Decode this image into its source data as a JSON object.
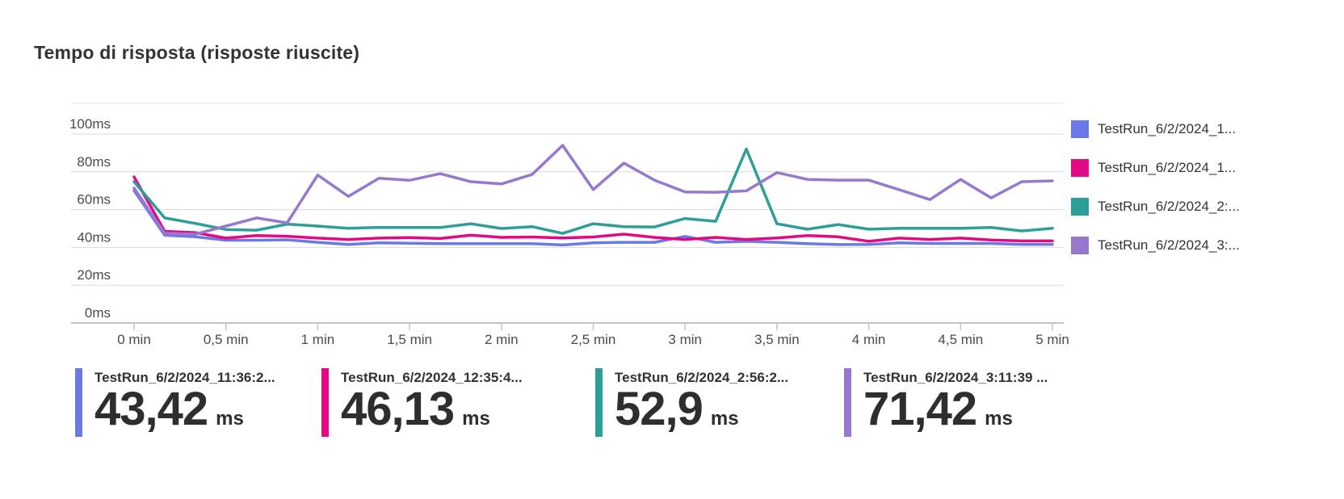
{
  "title": "Tempo di risposta (risposte riuscite)",
  "chart_data": {
    "type": "line",
    "title": "Tempo di risposta (risposte riuscite)",
    "xlabel": "",
    "ylabel": "",
    "y_unit": "ms",
    "x_unit": "min",
    "sample_interval_sec": 10,
    "x_range_min": [
      0,
      5
    ],
    "ylim": [
      0,
      100
    ],
    "grid": true,
    "legend_position": "right",
    "x_ticks": [
      "0 min",
      "0,5 min",
      "1 min",
      "1,5 min",
      "2 min",
      "2,5 min",
      "3 min",
      "3,5 min",
      "4 min",
      "4,5 min",
      "5 min"
    ],
    "y_ticks": [
      "0ms",
      "20ms",
      "40ms",
      "60ms",
      "80ms",
      "100ms"
    ],
    "y_tick_values": [
      0,
      20,
      40,
      60,
      80,
      100
    ],
    "series": [
      {
        "name": "TestRun_6/2/2024_11:36:2...",
        "legend_label": "TestRun_6/2/2024_1...",
        "color": "#6B79E8",
        "avg_ms": "43,42",
        "values": [
          70.1,
          46.5,
          45.6,
          43.8,
          43.8,
          44.0,
          42.7,
          41.6,
          42.4,
          42.2,
          42.0,
          42.0,
          42.0,
          42.0,
          41.3,
          42.4,
          42.7,
          42.7,
          45.8,
          42.7,
          43.2,
          42.7,
          42.0,
          41.5,
          41.6,
          42.4,
          42.1,
          42.1,
          42.1,
          41.6,
          41.6
        ]
      },
      {
        "name": "TestRun_6/2/2024_12:35:4...",
        "legend_label": "TestRun_6/2/2024_1...",
        "color": "#E30984",
        "avg_ms": "46,13",
        "values": [
          77.3,
          48.5,
          47.8,
          44.9,
          46.3,
          45.9,
          44.9,
          44.2,
          44.9,
          45.2,
          44.7,
          46.5,
          45.3,
          45.5,
          45.0,
          45.5,
          47.0,
          45.3,
          44.2,
          45.3,
          44.2,
          45.0,
          46.3,
          45.6,
          43.2,
          44.9,
          44.2,
          44.9,
          43.9,
          43.4,
          43.4
        ]
      },
      {
        "name": "TestRun_6/2/2024_2:56:2...",
        "legend_label": "TestRun_6/2/2024_2:...",
        "color": "#2E9E99",
        "avg_ms": "52,9",
        "values": [
          74.8,
          55.6,
          52.7,
          49.5,
          49.1,
          52.3,
          51.3,
          50.1,
          50.6,
          50.5,
          50.5,
          52.5,
          50.0,
          51.0,
          47.4,
          52.5,
          51.0,
          50.8,
          55.3,
          53.8,
          92.1,
          52.5,
          49.6,
          52.1,
          49.6,
          50.1,
          50.1,
          50.1,
          50.5,
          48.7,
          50.1
        ]
      },
      {
        "name": "TestRun_6/2/2024_3:11:39 ...",
        "legend_label": "TestRun_6/2/2024_3:...",
        "color": "#9678D0",
        "avg_ms": "71,42",
        "values": [
          71.4,
          47.5,
          47.0,
          51.3,
          55.6,
          53.0,
          78.3,
          67.0,
          76.6,
          75.5,
          79.0,
          74.8,
          73.6,
          78.6,
          94.0,
          70.6,
          84.6,
          75.6,
          69.3,
          69.2,
          69.9,
          79.6,
          76.0,
          75.6,
          75.6,
          70.5,
          65.3,
          76.0,
          66.2,
          74.8,
          75.2
        ]
      }
    ]
  },
  "cards": [
    {
      "label": "TestRun_6/2/2024_11:36:2...",
      "value": "43,42",
      "unit": "ms",
      "color": "#6B79E8"
    },
    {
      "label": "TestRun_6/2/2024_12:35:4...",
      "value": "46,13",
      "unit": "ms",
      "color": "#E30984"
    },
    {
      "label": "TestRun_6/2/2024_2:56:2...",
      "value": "52,9",
      "unit": "ms",
      "color": "#2E9E99"
    },
    {
      "label": "TestRun_6/2/2024_3:11:39 ...",
      "value": "71,42",
      "unit": "ms",
      "color": "#9678D0"
    }
  ]
}
